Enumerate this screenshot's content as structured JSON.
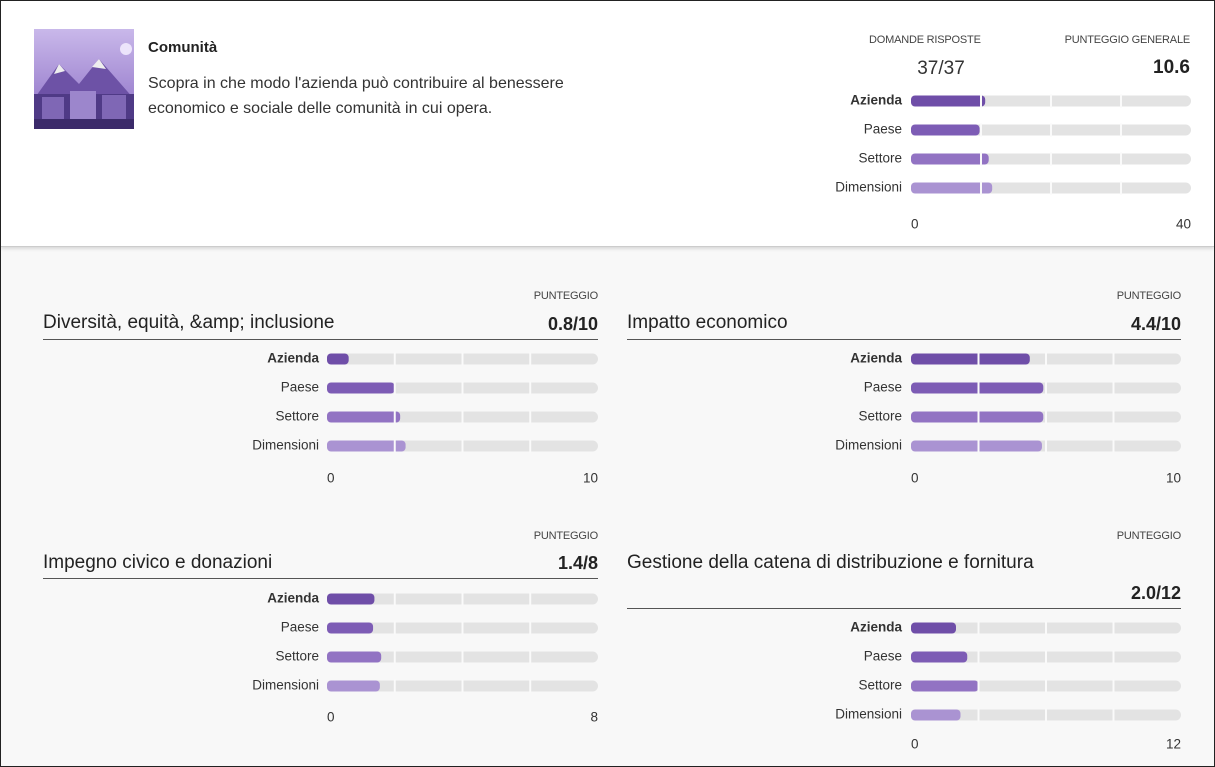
{
  "header": {
    "title": "Comunità",
    "description": "Scopra in che modo l'azienda può contribuire al benessere economico e sociale delle comunità in cui opera.",
    "answered_label": "DOMANDE RISPOSTE",
    "answered": "37/37",
    "score_label": "PUNTEGGIO GENERALE",
    "score": "10.6"
  },
  "chart_data": [
    {
      "type": "bar",
      "orientation": "horizontal",
      "categories": [
        "Azienda",
        "Paese",
        "Settore",
        "Dimensioni"
      ],
      "values": [
        10.6,
        9.8,
        11.1,
        11.6
      ],
      "colors": [
        "#6f4ea8",
        "#7d5cb5",
        "#9273c3",
        "#aa93d2"
      ],
      "xlim": [
        0,
        40
      ],
      "xticks": [
        0,
        40
      ]
    },
    {
      "type": "bar",
      "orientation": "horizontal",
      "title": "Diversità, equità, &amp; inclusione",
      "score_label": "PUNTEGGIO",
      "score": "0.8/10",
      "categories": [
        "Azienda",
        "Paese",
        "Settore",
        "Dimensioni"
      ],
      "values": [
        0.8,
        2.5,
        2.7,
        2.9
      ],
      "colors": [
        "#6f4ea8",
        "#7d5cb5",
        "#9273c3",
        "#aa93d2"
      ],
      "xlim": [
        0,
        10
      ],
      "xticks": [
        0,
        10
      ]
    },
    {
      "type": "bar",
      "orientation": "horizontal",
      "title": "Impatto economico",
      "score_label": "PUNTEGGIO",
      "score": "4.4/10",
      "categories": [
        "Azienda",
        "Paese",
        "Settore",
        "Dimensioni"
      ],
      "values": [
        4.4,
        4.9,
        4.9,
        4.85
      ],
      "colors": [
        "#6f4ea8",
        "#7d5cb5",
        "#9273c3",
        "#aa93d2"
      ],
      "xlim": [
        0,
        10
      ],
      "xticks": [
        0,
        10
      ]
    },
    {
      "type": "bar",
      "orientation": "horizontal",
      "title": "Impegno civico e donazioni",
      "score_label": "PUNTEGGIO",
      "score": "1.4/8",
      "categories": [
        "Azienda",
        "Paese",
        "Settore",
        "Dimensioni"
      ],
      "values": [
        1.4,
        1.36,
        1.6,
        1.56
      ],
      "colors": [
        "#6f4ea8",
        "#7d5cb5",
        "#9273c3",
        "#aa93d2"
      ],
      "xlim": [
        0,
        8
      ],
      "xticks": [
        0,
        8
      ]
    },
    {
      "type": "bar",
      "orientation": "horizontal",
      "title": "Gestione della catena di distribuzione e fornitura",
      "score_label": "PUNTEGGIO",
      "score": "2.0/12",
      "categories": [
        "Azienda",
        "Paese",
        "Settore",
        "Dimensioni"
      ],
      "values": [
        2.0,
        2.5,
        3.0,
        2.2
      ],
      "colors": [
        "#6f4ea8",
        "#7d5cb5",
        "#9273c3",
        "#aa93d2"
      ],
      "xlim": [
        0,
        12
      ],
      "xticks": [
        0,
        12
      ]
    }
  ]
}
